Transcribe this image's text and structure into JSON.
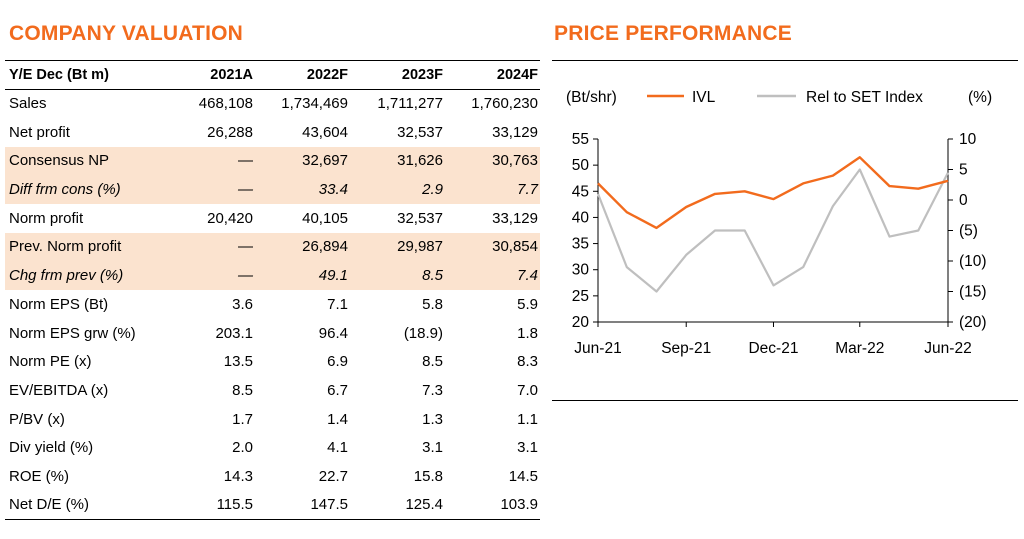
{
  "valuation": {
    "title": "COMPANY VALUATION",
    "header": [
      "Y/E Dec (Bt m)",
      "2021A",
      "2022F",
      "2023F",
      "2024F"
    ],
    "rows": [
      {
        "label": "Sales",
        "values": [
          "468,108",
          "1,734,469",
          "1,711,277",
          "1,760,230"
        ],
        "style": ""
      },
      {
        "label": "Net profit",
        "values": [
          "26,288",
          "43,604",
          "32,537",
          "33,129"
        ],
        "style": ""
      },
      {
        "label": "Consensus NP",
        "values": [
          "—",
          "32,697",
          "31,626",
          "30,763"
        ],
        "style": "hl"
      },
      {
        "label": "Diff frm cons (%)",
        "values": [
          "—",
          "33.4",
          "2.9",
          "7.7"
        ],
        "style": "hl it"
      },
      {
        "label": "Norm profit",
        "values": [
          "20,420",
          "40,105",
          "32,537",
          "33,129"
        ],
        "style": ""
      },
      {
        "label": "Prev. Norm profit",
        "values": [
          "—",
          "26,894",
          "29,987",
          "30,854"
        ],
        "style": "hl"
      },
      {
        "label": "Chg frm prev (%)",
        "values": [
          "—",
          "49.1",
          "8.5",
          "7.4"
        ],
        "style": "hl it"
      },
      {
        "label": "Norm EPS (Bt)",
        "values": [
          "3.6",
          "7.1",
          "5.8",
          "5.9"
        ],
        "style": ""
      },
      {
        "label": "Norm EPS grw (%)",
        "values": [
          "203.1",
          "96.4",
          "(18.9)",
          "1.8"
        ],
        "style": ""
      },
      {
        "label": "Norm PE (x)",
        "values": [
          "13.5",
          "6.9",
          "8.5",
          "8.3"
        ],
        "style": ""
      },
      {
        "label": "EV/EBITDA (x)",
        "values": [
          "8.5",
          "6.7",
          "7.3",
          "7.0"
        ],
        "style": ""
      },
      {
        "label": "P/BV (x)",
        "values": [
          "1.7",
          "1.4",
          "1.3",
          "1.1"
        ],
        "style": ""
      },
      {
        "label": "Div yield (%)",
        "values": [
          "2.0",
          "4.1",
          "3.1",
          "3.1"
        ],
        "style": ""
      },
      {
        "label": "ROE (%)",
        "values": [
          "14.3",
          "22.7",
          "15.8",
          "14.5"
        ],
        "style": ""
      },
      {
        "label": "Net D/E (%)",
        "values": [
          "115.5",
          "147.5",
          "125.4",
          "103.9"
        ],
        "style": ""
      }
    ]
  },
  "performance": {
    "title": "PRICE PERFORMANCE"
  },
  "chart_data": {
    "type": "line",
    "left_axis_label": "(Bt/shr)",
    "right_axis_label": "(%)",
    "left_ylim": [
      20,
      55
    ],
    "left_ticks": [
      "20",
      "25",
      "30",
      "35",
      "40",
      "45",
      "50",
      "55"
    ],
    "right_ylim": [
      -20,
      10
    ],
    "right_ticks": [
      "(20)",
      "(15)",
      "(10)",
      "(5)",
      "0",
      "5",
      "10"
    ],
    "x_ticks": [
      "Jun-21",
      "Sep-21",
      "Dec-21",
      "Mar-22",
      "Jun-22"
    ],
    "series": [
      {
        "name": "IVL",
        "axis": "left",
        "color": "#f26b1d",
        "x": [
          "2021-06",
          "2021-07",
          "2021-08",
          "2021-09",
          "2021-10",
          "2021-11",
          "2021-12",
          "2022-01",
          "2022-02",
          "2022-03",
          "2022-04",
          "2022-05",
          "2022-06"
        ],
        "values": [
          46.5,
          41.0,
          38.0,
          42.0,
          44.5,
          45.0,
          43.5,
          46.5,
          48.0,
          51.5,
          46.0,
          45.5,
          47.0
        ]
      },
      {
        "name": "Rel to SET Index",
        "axis": "right",
        "color": "#bfbfbf",
        "x": [
          "2021-06",
          "2021-07",
          "2021-08",
          "2021-09",
          "2021-10",
          "2021-11",
          "2021-12",
          "2022-01",
          "2022-02",
          "2022-03",
          "2022-04",
          "2022-05",
          "2022-06"
        ],
        "values": [
          1.0,
          -11.0,
          -15.0,
          -9.0,
          -5.0,
          -5.0,
          -14.0,
          -11.0,
          -1.0,
          5.0,
          -6.0,
          -5.0,
          4.5
        ]
      }
    ]
  }
}
